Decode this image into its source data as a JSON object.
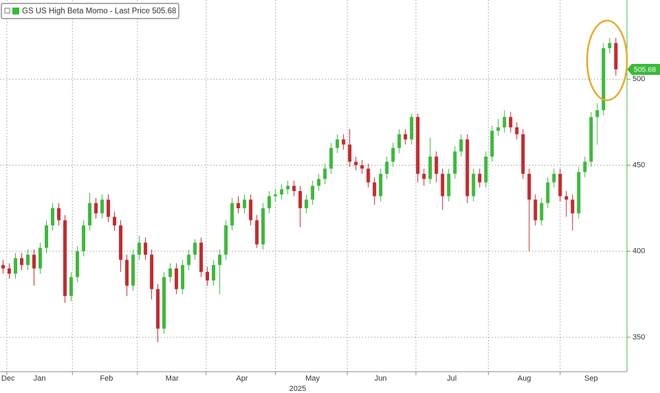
{
  "chart_data": {
    "type": "candlestick",
    "series": [
      {
        "name": "GS US High Beta Momo",
        "up_color": "#3cba3c",
        "down_color": "#c62a2f",
        "open": [
          392,
          390,
          387,
          396,
          392,
          398,
          390,
          402,
          415,
          425,
          418,
          374,
          385,
          400,
          415,
          428,
          422,
          430,
          420,
          415,
          395,
          380,
          398,
          405,
          398,
          378,
          355,
          385,
          390,
          378,
          392,
          398,
          405,
          388,
          383,
          392,
          398,
          415,
          428,
          425,
          430,
          418,
          404,
          425,
          432,
          433,
          436,
          438,
          435,
          425,
          430,
          438,
          442,
          448,
          460,
          465,
          462,
          452,
          450,
          448,
          440,
          432,
          445,
          452,
          460,
          468,
          465,
          478,
          445,
          442,
          455,
          445,
          432,
          445,
          458,
          465,
          432,
          445,
          440,
          455,
          470,
          472,
          478,
          472,
          468,
          445,
          430,
          418,
          428,
          440,
          445,
          432,
          430,
          422,
          446,
          452,
          478,
          482,
          518,
          521
        ],
        "high": [
          395,
          393,
          399,
          399,
          401,
          401,
          405,
          418,
          428,
          428,
          421,
          388,
          403,
          418,
          434,
          431,
          433,
          433,
          423,
          418,
          398,
          401,
          409,
          408,
          401,
          381,
          388,
          393,
          393,
          395,
          401,
          407,
          408,
          391,
          395,
          401,
          418,
          431,
          432,
          433,
          433,
          421,
          428,
          435,
          436,
          439,
          441,
          441,
          438,
          433,
          441,
          445,
          451,
          463,
          468,
          468,
          471,
          455,
          453,
          451,
          443,
          448,
          455,
          463,
          471,
          471,
          480,
          480,
          448,
          466,
          458,
          448,
          448,
          461,
          468,
          468,
          448,
          448,
          458,
          473,
          477,
          482,
          481,
          475,
          471,
          448,
          433,
          431,
          443,
          448,
          448,
          435,
          433,
          449,
          455,
          481,
          486,
          521,
          524,
          524
        ],
        "low": [
          387,
          384,
          384,
          389,
          389,
          380,
          387,
          399,
          412,
          415,
          370,
          371,
          382,
          397,
          412,
          419,
          419,
          417,
          412,
          388,
          374,
          377,
          395,
          395,
          372,
          347,
          352,
          382,
          375,
          375,
          389,
          395,
          385,
          380,
          380,
          375,
          395,
          412,
          422,
          422,
          415,
          402,
          401,
          422,
          429,
          430,
          433,
          432,
          414,
          422,
          427,
          435,
          439,
          445,
          457,
          459,
          449,
          447,
          445,
          437,
          427,
          429,
          442,
          449,
          457,
          462,
          462,
          440,
          438,
          439,
          440,
          424,
          429,
          442,
          455,
          428,
          429,
          437,
          437,
          452,
          467,
          469,
          469,
          465,
          442,
          400,
          415,
          415,
          425,
          437,
          429,
          420,
          412,
          419,
          443,
          449,
          462,
          479,
          515,
          502
        ],
        "close": [
          390,
          387,
          396,
          392,
          398,
          390,
          402,
          415,
          425,
          418,
          374,
          385,
          400,
          415,
          428,
          422,
          430,
          420,
          415,
          395,
          380,
          398,
          405,
          398,
          378,
          355,
          385,
          390,
          378,
          392,
          398,
          405,
          388,
          383,
          392,
          398,
          415,
          428,
          425,
          430,
          418,
          404,
          425,
          432,
          433,
          436,
          438,
          435,
          425,
          430,
          438,
          442,
          448,
          460,
          465,
          462,
          452,
          450,
          448,
          440,
          432,
          445,
          452,
          460,
          468,
          465,
          478,
          445,
          442,
          455,
          445,
          432,
          445,
          458,
          465,
          432,
          445,
          440,
          455,
          470,
          472,
          478,
          472,
          468,
          445,
          430,
          418,
          428,
          440,
          445,
          432,
          430,
          422,
          446,
          452,
          478,
          482,
          518,
          521,
          505.68
        ]
      }
    ],
    "legend_suffix": "- Last Price",
    "xlim": [
      -0.5,
      100.8
    ],
    "xticks": [
      {
        "value": 0.8,
        "label": "Dec"
      },
      {
        "value": 5.9,
        "label": "Jan"
      },
      {
        "value": 16.7,
        "label": "Feb"
      },
      {
        "value": 27.3,
        "label": "Mar"
      },
      {
        "value": 38.6,
        "label": "Apr"
      },
      {
        "value": 50,
        "label": "May"
      },
      {
        "value": 61,
        "label": "Jun"
      },
      {
        "value": 72.5,
        "label": "Jul"
      },
      {
        "value": 84.2,
        "label": "Aug"
      },
      {
        "value": 95,
        "label": "Sep"
      }
    ],
    "xgrid": [
      0.6,
      11.2,
      21.7,
      32.8,
      44,
      55.6,
      66.7,
      78.4,
      90
    ],
    "year_label": "2025",
    "ylim": [
      330,
      546
    ],
    "yticks": [
      350,
      400,
      450,
      500
    ],
    "grid": true
  }
}
